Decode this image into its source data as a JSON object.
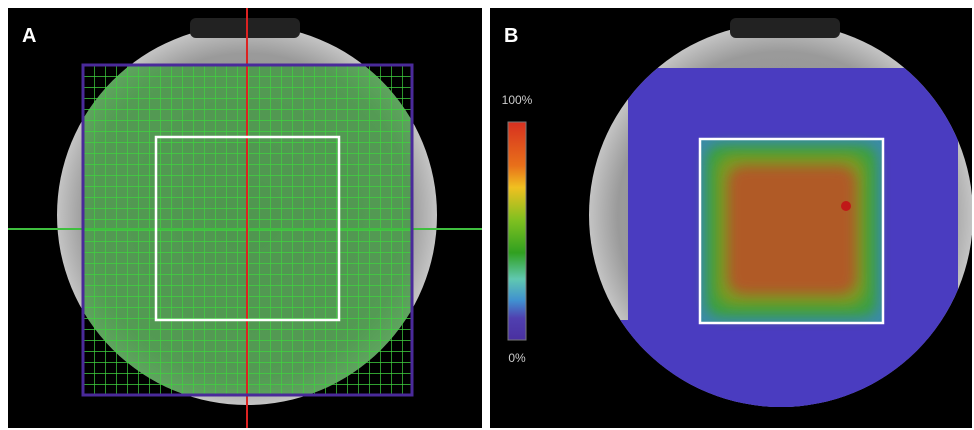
{
  "panels": {
    "a": {
      "label": "A"
    },
    "b": {
      "label": "B"
    }
  },
  "colorbar": {
    "max_label": "100%",
    "min_label": "0%"
  }
}
